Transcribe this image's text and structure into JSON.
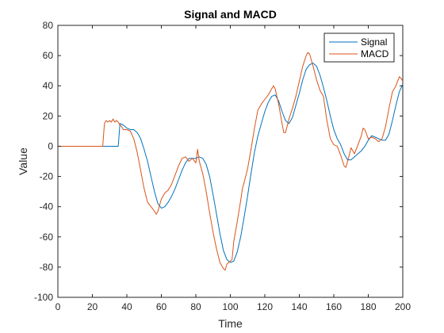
{
  "chart_data": {
    "type": "line",
    "title": "Signal and MACD",
    "xlabel": "Time",
    "ylabel": "Value",
    "xlim": [
      0,
      200
    ],
    "ylim": [
      -100,
      80
    ],
    "xticks": [
      0,
      20,
      40,
      60,
      80,
      100,
      120,
      140,
      160,
      180,
      200
    ],
    "yticks": [
      -100,
      -80,
      -60,
      -40,
      -20,
      0,
      20,
      40,
      60,
      80
    ],
    "grid": false,
    "legend_position": "top-right",
    "series": [
      {
        "name": "Signal",
        "color": "#0072BD",
        "points": [
          [
            0,
            0
          ],
          [
            35,
            0
          ],
          [
            36,
            15
          ],
          [
            38,
            14
          ],
          [
            40,
            12
          ],
          [
            42,
            11
          ],
          [
            44,
            11
          ],
          [
            46,
            9
          ],
          [
            48,
            5
          ],
          [
            50,
            -2
          ],
          [
            52,
            -10
          ],
          [
            54,
            -20
          ],
          [
            56,
            -30
          ],
          [
            58,
            -38
          ],
          [
            60,
            -41
          ],
          [
            62,
            -40
          ],
          [
            64,
            -37
          ],
          [
            66,
            -33
          ],
          [
            68,
            -28
          ],
          [
            70,
            -22
          ],
          [
            72,
            -16
          ],
          [
            74,
            -11
          ],
          [
            76,
            -8
          ],
          [
            78,
            -8
          ],
          [
            80,
            -8
          ],
          [
            82,
            -7
          ],
          [
            84,
            -8
          ],
          [
            86,
            -12
          ],
          [
            88,
            -20
          ],
          [
            90,
            -32
          ],
          [
            92,
            -45
          ],
          [
            94,
            -58
          ],
          [
            96,
            -69
          ],
          [
            98,
            -75
          ],
          [
            100,
            -77
          ],
          [
            102,
            -76
          ],
          [
            104,
            -70
          ],
          [
            106,
            -60
          ],
          [
            108,
            -47
          ],
          [
            110,
            -33
          ],
          [
            112,
            -18
          ],
          [
            114,
            -4
          ],
          [
            116,
            7
          ],
          [
            118,
            15
          ],
          [
            120,
            23
          ],
          [
            122,
            29
          ],
          [
            124,
            33
          ],
          [
            126,
            34
          ],
          [
            128,
            30
          ],
          [
            130,
            23
          ],
          [
            132,
            17
          ],
          [
            134,
            15
          ],
          [
            136,
            19
          ],
          [
            138,
            27
          ],
          [
            140,
            35
          ],
          [
            142,
            44
          ],
          [
            144,
            51
          ],
          [
            146,
            54
          ],
          [
            148,
            55
          ],
          [
            150,
            53
          ],
          [
            152,
            47
          ],
          [
            154,
            39
          ],
          [
            156,
            30
          ],
          [
            158,
            20
          ],
          [
            160,
            11
          ],
          [
            162,
            5
          ],
          [
            164,
            1
          ],
          [
            166,
            -5
          ],
          [
            168,
            -9
          ],
          [
            170,
            -9
          ],
          [
            172,
            -7
          ],
          [
            174,
            -5
          ],
          [
            176,
            -3
          ],
          [
            178,
            0
          ],
          [
            180,
            4
          ],
          [
            182,
            7
          ],
          [
            184,
            6
          ],
          [
            186,
            5
          ],
          [
            188,
            4
          ],
          [
            190,
            4
          ],
          [
            192,
            8
          ],
          [
            194,
            17
          ],
          [
            196,
            27
          ],
          [
            198,
            36
          ],
          [
            200,
            41
          ]
        ]
      },
      {
        "name": "MACD",
        "color": "#D95319",
        "points": [
          [
            0,
            0
          ],
          [
            26,
            0
          ],
          [
            27,
            15
          ],
          [
            28,
            17
          ],
          [
            29,
            16
          ],
          [
            30,
            17
          ],
          [
            31,
            16
          ],
          [
            32,
            18
          ],
          [
            33,
            16
          ],
          [
            34,
            17
          ],
          [
            35,
            16
          ],
          [
            36,
            14
          ],
          [
            37,
            13
          ],
          [
            38,
            11
          ],
          [
            40,
            11
          ],
          [
            42,
            10
          ],
          [
            44,
            5
          ],
          [
            46,
            -4
          ],
          [
            48,
            -16
          ],
          [
            50,
            -28
          ],
          [
            52,
            -37
          ],
          [
            54,
            -40
          ],
          [
            56,
            -43
          ],
          [
            57,
            -45
          ],
          [
            58,
            -43
          ],
          [
            60,
            -35
          ],
          [
            62,
            -31
          ],
          [
            64,
            -29
          ],
          [
            66,
            -25
          ],
          [
            68,
            -19
          ],
          [
            70,
            -13
          ],
          [
            72,
            -8
          ],
          [
            74,
            -7
          ],
          [
            76,
            -10
          ],
          [
            78,
            -8
          ],
          [
            80,
            -11
          ],
          [
            81,
            -2
          ],
          [
            82,
            -10
          ],
          [
            84,
            -18
          ],
          [
            86,
            -30
          ],
          [
            88,
            -44
          ],
          [
            90,
            -57
          ],
          [
            92,
            -68
          ],
          [
            94,
            -77
          ],
          [
            96,
            -81
          ],
          [
            97,
            -82
          ],
          [
            98,
            -78
          ],
          [
            100,
            -76
          ],
          [
            101,
            -75
          ],
          [
            102,
            -63
          ],
          [
            104,
            -50
          ],
          [
            106,
            -36
          ],
          [
            107,
            -28
          ],
          [
            108,
            -24
          ],
          [
            110,
            -15
          ],
          [
            112,
            -2
          ],
          [
            114,
            12
          ],
          [
            116,
            24
          ],
          [
            118,
            28
          ],
          [
            120,
            31
          ],
          [
            122,
            34
          ],
          [
            124,
            38
          ],
          [
            125,
            40
          ],
          [
            126,
            38
          ],
          [
            128,
            28
          ],
          [
            130,
            15
          ],
          [
            131,
            9
          ],
          [
            132,
            9
          ],
          [
            134,
            18
          ],
          [
            136,
            25
          ],
          [
            138,
            33
          ],
          [
            140,
            43
          ],
          [
            142,
            53
          ],
          [
            144,
            60
          ],
          [
            145,
            62
          ],
          [
            146,
            61
          ],
          [
            148,
            53
          ],
          [
            150,
            44
          ],
          [
            152,
            37
          ],
          [
            154,
            33
          ],
          [
            156,
            17
          ],
          [
            158,
            5
          ],
          [
            160,
            1
          ],
          [
            162,
            0
          ],
          [
            164,
            -6
          ],
          [
            166,
            -13
          ],
          [
            167,
            -14
          ],
          [
            168,
            -10
          ],
          [
            170,
            -1
          ],
          [
            172,
            -5
          ],
          [
            174,
            1
          ],
          [
            176,
            7
          ],
          [
            177,
            12
          ],
          [
            178,
            11
          ],
          [
            180,
            5
          ],
          [
            182,
            6
          ],
          [
            184,
            5
          ],
          [
            186,
            3
          ],
          [
            188,
            5
          ],
          [
            190,
            13
          ],
          [
            192,
            25
          ],
          [
            194,
            36
          ],
          [
            196,
            40
          ],
          [
            198,
            46
          ],
          [
            199,
            45
          ],
          [
            200,
            43
          ]
        ]
      }
    ]
  }
}
